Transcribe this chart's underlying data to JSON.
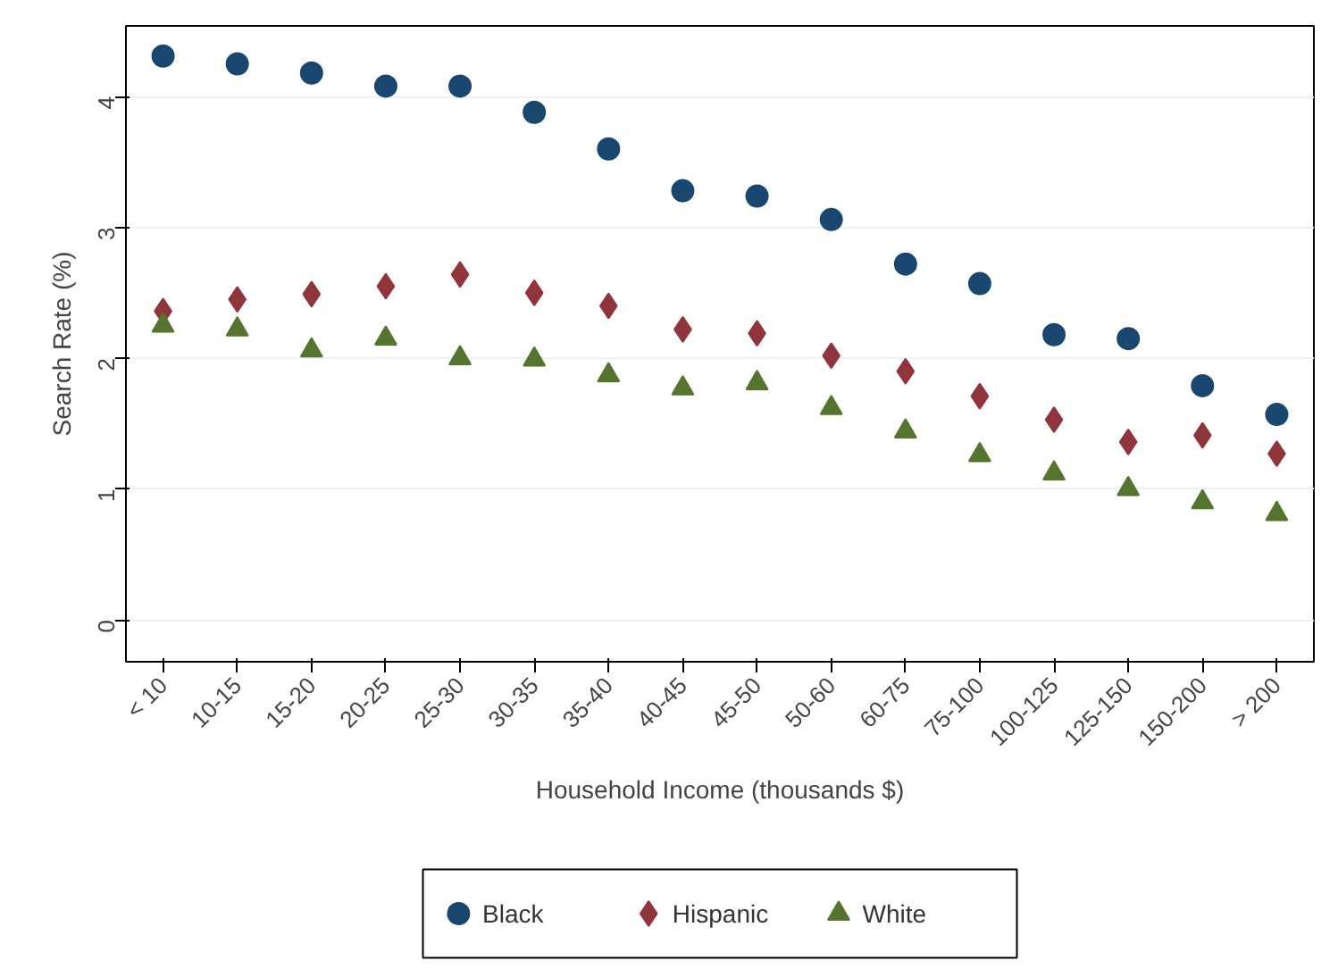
{
  "chart_data": {
    "type": "scatter",
    "xlabel": "Household Income (thousands $)",
    "ylabel": "Search Rate (%)",
    "categories": [
      "< 10",
      "10-15",
      "15-20",
      "20-25",
      "25-30",
      "30-35",
      "35-40",
      "40-45",
      "45-50",
      "50-60",
      "60-75",
      "75-100",
      "100-125",
      "125-150",
      "150-200",
      "> 200"
    ],
    "ylim": [
      -0.32,
      4.54
    ],
    "yticks": [
      0,
      1,
      2,
      3,
      4
    ],
    "grid": "y",
    "legend": "bottom",
    "series": [
      {
        "name": "Black",
        "color": "#1a476f",
        "marker": "circle",
        "values": [
          4.31,
          4.25,
          4.18,
          4.08,
          4.08,
          3.88,
          3.6,
          3.28,
          3.24,
          3.06,
          2.72,
          2.57,
          2.18,
          2.15,
          1.79,
          1.57
        ]
      },
      {
        "name": "Hispanic",
        "color": "#90353b",
        "marker": "diamond",
        "values": [
          2.36,
          2.45,
          2.49,
          2.55,
          2.64,
          2.5,
          2.4,
          2.22,
          2.19,
          2.02,
          1.9,
          1.71,
          1.53,
          1.36,
          1.41,
          1.27
        ]
      },
      {
        "name": "White",
        "color": "#55752f",
        "marker": "triangle",
        "values": [
          2.25,
          2.22,
          2.06,
          2.15,
          2.0,
          1.99,
          1.87,
          1.77,
          1.81,
          1.62,
          1.44,
          1.26,
          1.12,
          1.0,
          0.9,
          0.81
        ]
      }
    ]
  }
}
